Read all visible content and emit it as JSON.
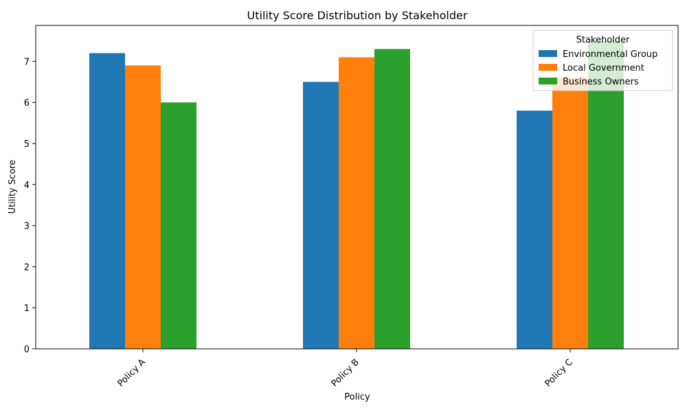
{
  "chart_data": {
    "type": "bar",
    "title": "Utility Score Distribution by Stakeholder",
    "xlabel": "Policy",
    "ylabel": "Utility Score",
    "categories": [
      "Policy A",
      "Policy B",
      "Policy C"
    ],
    "series": [
      {
        "name": "Environmental Group",
        "color": "#1f77b4",
        "values": [
          7.2,
          6.5,
          5.8
        ]
      },
      {
        "name": "Local Government",
        "color": "#ff7f0e",
        "values": [
          6.9,
          7.1,
          6.6
        ]
      },
      {
        "name": "Business Owners",
        "color": "#2ca02c",
        "values": [
          6.0,
          7.3,
          7.5
        ]
      }
    ],
    "ylim": [
      0,
      7.875
    ],
    "yticks": [
      0,
      1,
      2,
      3,
      4,
      5,
      6,
      7
    ],
    "legend": {
      "title": "Stakeholder",
      "placement": "top-right"
    },
    "grid": false,
    "xtick_rotation_deg": 45
  }
}
